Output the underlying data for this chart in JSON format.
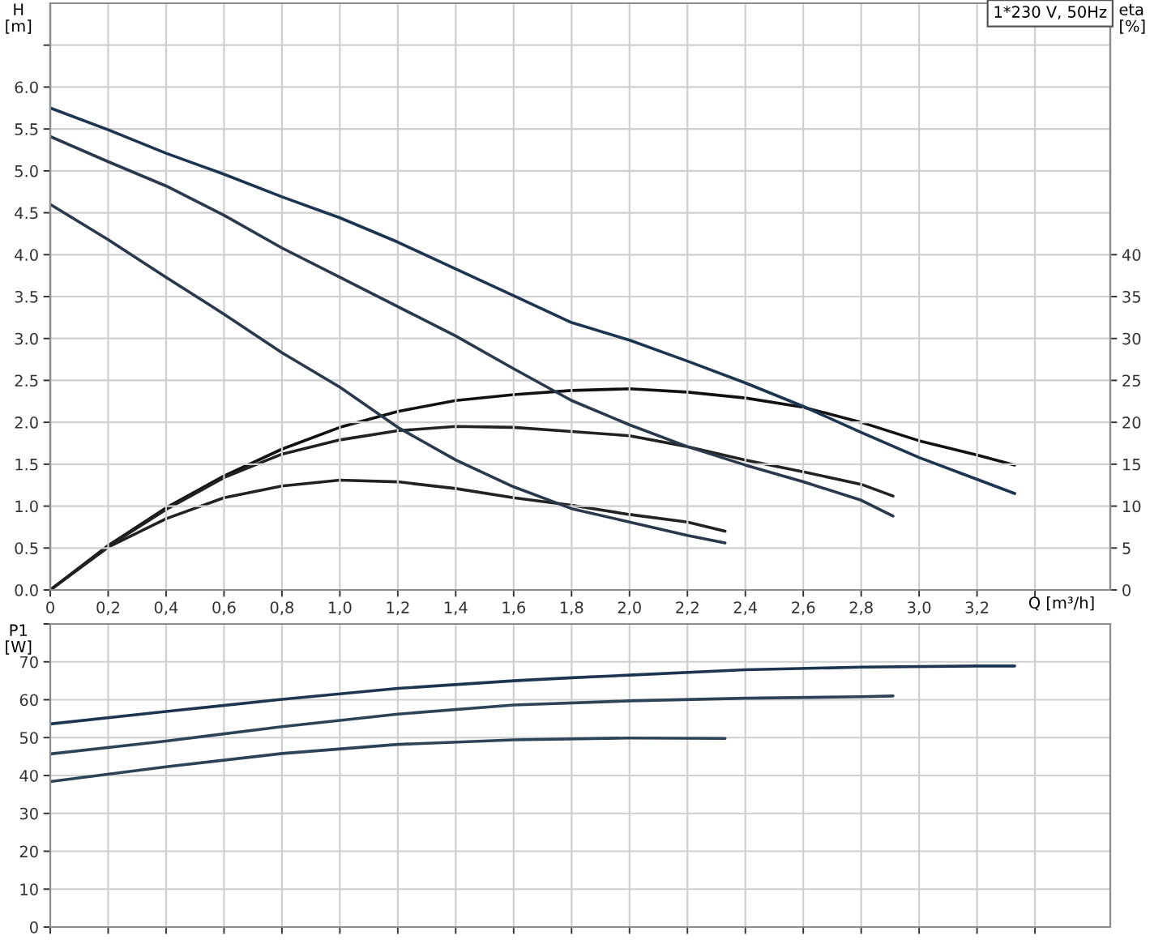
{
  "chart_data": [
    {
      "type": "line",
      "xlabel": "Q [m³/h]",
      "ylabel": "H\n[m]",
      "y2label": "eta\n[%]",
      "annotations": [
        "1*230 V, 50Hz"
      ],
      "xlim": [
        0,
        3.66
      ],
      "xticks": [
        0,
        {
          "value": 0.2,
          "label": "0,2"
        },
        {
          "value": 0.4,
          "label": "0,4"
        },
        {
          "value": 0.6,
          "label": "0,6"
        },
        {
          "value": 0.8,
          "label": "0,8"
        },
        {
          "value": 1.0,
          "label": "1,0"
        },
        {
          "value": 1.2,
          "label": "1,2"
        },
        {
          "value": 1.4,
          "label": "1,4"
        },
        {
          "value": 1.6,
          "label": "1,6"
        },
        {
          "value": 1.8,
          "label": "1,8"
        },
        {
          "value": 2.0,
          "label": "2,0"
        },
        {
          "value": 2.2,
          "label": "2,2"
        },
        {
          "value": 2.4,
          "label": "2,4"
        },
        {
          "value": 2.6,
          "label": "2,6"
        },
        {
          "value": 2.8,
          "label": "2,8"
        },
        {
          "value": 3.0,
          "label": "3,0"
        },
        {
          "value": 3.2,
          "label": "3,2"
        },
        {
          "value": 3.4,
          "label": null
        }
      ],
      "ylim": [
        0,
        7.0
      ],
      "yticks": [
        {
          "value": 0,
          "label": "0.0"
        },
        {
          "value": 0.5,
          "label": "0.5"
        },
        {
          "value": 1.0,
          "label": "1.0"
        },
        {
          "value": 1.5,
          "label": "1.5"
        },
        {
          "value": 2.0,
          "label": "2.0"
        },
        {
          "value": 2.5,
          "label": "2.5"
        },
        {
          "value": 3.0,
          "label": "3.0"
        },
        {
          "value": 3.5,
          "label": "3.5"
        },
        {
          "value": 4.0,
          "label": "4.0"
        },
        {
          "value": 4.5,
          "label": "4.5"
        },
        {
          "value": 5.0,
          "label": "5.0"
        },
        {
          "value": 5.5,
          "label": "5.5"
        },
        {
          "value": 6.0,
          "label": "6.0"
        },
        {
          "value": 6.5,
          "label": null
        }
      ],
      "y2lim": [
        0,
        70
      ],
      "y2ticks": [
        0,
        5,
        10,
        15,
        20,
        25,
        30,
        35,
        40
      ],
      "grid": true,
      "series": [
        {
          "color": "#1d3550",
          "x": [
            0,
            0.2,
            0.4,
            0.6,
            0.8,
            1.0,
            1.2,
            1.4,
            1.6,
            1.8,
            2.0,
            2.2,
            2.4,
            2.6,
            2.8,
            3.0,
            3.2,
            3.33
          ],
          "values": [
            5.75,
            5.49,
            5.21,
            4.96,
            4.69,
            4.44,
            4.15,
            3.83,
            3.51,
            3.19,
            2.98,
            2.73,
            2.47,
            2.19,
            1.88,
            1.58,
            1.32,
            1.15
          ]
        },
        {
          "color": "#2a3a4c",
          "x": [
            0,
            0.2,
            0.4,
            0.6,
            0.8,
            1.0,
            1.2,
            1.4,
            1.6,
            1.8,
            2.0,
            2.2,
            2.4,
            2.6,
            2.8,
            2.91
          ],
          "values": [
            5.41,
            5.11,
            4.82,
            4.47,
            4.08,
            3.73,
            3.38,
            3.03,
            2.64,
            2.26,
            1.97,
            1.71,
            1.49,
            1.29,
            1.07,
            0.88
          ]
        },
        {
          "color": "#2a3a4c",
          "x": [
            0,
            0.2,
            0.4,
            0.6,
            0.8,
            1.0,
            1.2,
            1.4,
            1.6,
            1.8,
            2.0,
            2.2,
            2.33
          ],
          "values": [
            4.6,
            4.18,
            3.73,
            3.29,
            2.83,
            2.42,
            1.94,
            1.55,
            1.23,
            0.97,
            0.81,
            0.65,
            0.56
          ]
        },
        {
          "color": "#111111",
          "axis": "y2",
          "x": [
            0,
            0.2,
            0.4,
            0.6,
            0.8,
            1.0,
            1.2,
            1.4,
            1.6,
            1.8,
            2.0,
            2.2,
            2.4,
            2.6,
            2.8,
            3.0,
            3.2,
            3.33
          ],
          "values": [
            0,
            5.3,
            9.8,
            13.6,
            16.8,
            19.4,
            21.3,
            22.6,
            23.3,
            23.8,
            24.0,
            23.6,
            22.9,
            21.8,
            20.0,
            17.8,
            16.1,
            14.9
          ]
        },
        {
          "color": "#222222",
          "axis": "y2",
          "x": [
            0,
            0.2,
            0.4,
            0.6,
            0.8,
            1.0,
            1.2,
            1.4,
            1.6,
            1.8,
            2.0,
            2.2,
            2.4,
            2.6,
            2.8,
            2.91
          ],
          "values": [
            0,
            5.2,
            9.6,
            13.4,
            16.2,
            17.9,
            19.0,
            19.5,
            19.4,
            18.9,
            18.4,
            17.1,
            15.5,
            14.1,
            12.6,
            11.2
          ]
        },
        {
          "color": "#222222",
          "axis": "y2",
          "x": [
            0,
            0.2,
            0.4,
            0.6,
            0.8,
            1.0,
            1.2,
            1.4,
            1.6,
            1.8,
            2.0,
            2.2,
            2.33
          ],
          "values": [
            0,
            5.1,
            8.5,
            11.0,
            12.4,
            13.1,
            12.9,
            12.1,
            11.0,
            10.1,
            9.0,
            8.1,
            7.0
          ]
        }
      ]
    },
    {
      "type": "line",
      "ylabel": "P1\n[W]",
      "tick_labels": "y",
      "xlim": [
        0,
        3.66
      ],
      "xticks": [
        0,
        0.2,
        0.4,
        0.6,
        0.8,
        1.0,
        1.2,
        1.4,
        1.6,
        1.8,
        2.0,
        2.2,
        2.4,
        2.6,
        2.8,
        3.0,
        3.2,
        3.4
      ],
      "ylim": [
        0,
        80
      ],
      "yticks": [
        0,
        10,
        20,
        30,
        40,
        50,
        60,
        70,
        {
          "value": 80,
          "label": null
        }
      ],
      "grid": true,
      "series": [
        {
          "color": "#1d3550",
          "x": [
            0,
            0.4,
            0.8,
            1.2,
            1.6,
            1.8,
            2.0,
            2.4,
            2.8,
            3.2,
            3.33
          ],
          "values": [
            53.6,
            56.9,
            60.1,
            63.0,
            65.0,
            65.8,
            66.5,
            67.9,
            68.6,
            68.9,
            68.9
          ]
        },
        {
          "color": "#2d4358",
          "x": [
            0,
            0.4,
            0.8,
            1.2,
            1.6,
            2.0,
            2.4,
            2.8,
            2.91
          ],
          "values": [
            45.7,
            49.1,
            52.9,
            56.2,
            58.6,
            59.7,
            60.4,
            60.8,
            61.0
          ]
        },
        {
          "color": "#2d4358",
          "x": [
            0,
            0.4,
            0.8,
            1.2,
            1.6,
            2.0,
            2.33
          ],
          "values": [
            38.4,
            42.3,
            45.8,
            48.2,
            49.4,
            49.9,
            49.8
          ]
        }
      ]
    }
  ]
}
